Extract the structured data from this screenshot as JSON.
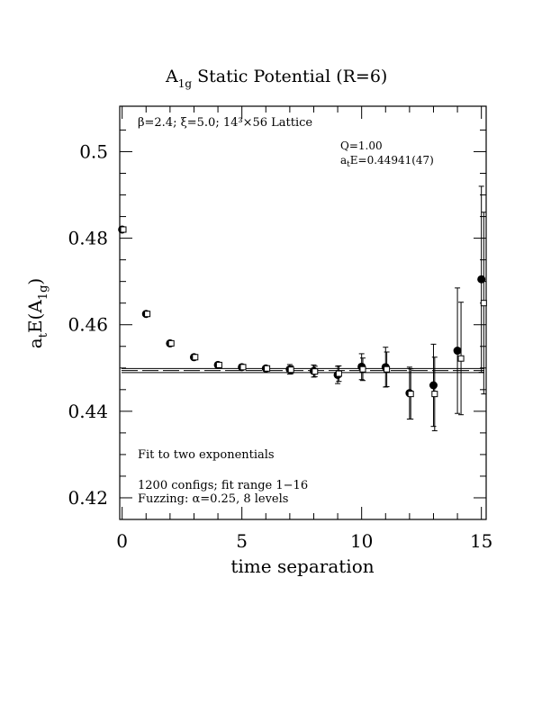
{
  "chart_data": {
    "type": "scatter",
    "title": "A",
    "title_sub": "1g",
    "title_rest": " Static Potential (R=6)",
    "xlabel": "time separation",
    "ylabel_main": "a",
    "ylabel_sub1": "t",
    "ylabel_mid": "E(A",
    "ylabel_sub2": "1g",
    "ylabel_end": ")",
    "xlim": [
      -0.1,
      15.2
    ],
    "ylim": [
      0.415,
      0.5105
    ],
    "x_ticks": [
      0,
      5,
      10,
      15
    ],
    "x_tick_labels": [
      "0",
      "5",
      "10",
      "15"
    ],
    "y_ticks": [
      0.42,
      0.44,
      0.46,
      0.48,
      0.5
    ],
    "y_tick_labels": [
      "0.42",
      "0.44",
      "0.46",
      "0.48",
      "0.5"
    ],
    "grid": false,
    "annotations": {
      "lattice": "β=2.4; ξ=5.0; 14³×56 Lattice",
      "q_label": "Q=1.00",
      "energy_main": "a",
      "energy_sub": "t",
      "energy_rest": "E=0.44941(47)",
      "fit_type": "Fit to two exponentials",
      "configs": "1200 configs; fit range 1−16",
      "fuzzing": "Fuzzing: α=0.25, 8 levels"
    },
    "fit_band": {
      "center": 0.44941,
      "error": 0.00047
    },
    "series": [
      {
        "marker": "filled-circle",
        "points": [
          {
            "x": 0,
            "y": 0.482,
            "err": 0.0004
          },
          {
            "x": 1,
            "y": 0.4625,
            "err": 0.0005
          },
          {
            "x": 2,
            "y": 0.4557,
            "err": 0.0005
          },
          {
            "x": 3,
            "y": 0.4525,
            "err": 0.0005
          },
          {
            "x": 4,
            "y": 0.4507,
            "err": 0.0006
          },
          {
            "x": 5,
            "y": 0.4502,
            "err": 0.0007
          },
          {
            "x": 6,
            "y": 0.4499,
            "err": 0.0008
          },
          {
            "x": 7,
            "y": 0.4497,
            "err": 0.0011
          },
          {
            "x": 8,
            "y": 0.4493,
            "err": 0.0014
          },
          {
            "x": 9,
            "y": 0.4484,
            "err": 0.002
          },
          {
            "x": 10,
            "y": 0.4503,
            "err": 0.003
          },
          {
            "x": 11,
            "y": 0.4502,
            "err": 0.0046
          },
          {
            "x": 12,
            "y": 0.4442,
            "err": 0.006
          },
          {
            "x": 13,
            "y": 0.446,
            "err": 0.0095
          },
          {
            "x": 14,
            "y": 0.454,
            "err": 0.0145
          },
          {
            "x": 15,
            "y": 0.4705,
            "err": 0.0215
          }
        ]
      },
      {
        "marker": "open-square",
        "points": [
          {
            "x": 0.05,
            "y": 0.482,
            "err": 0.0003
          },
          {
            "x": 1.05,
            "y": 0.4625,
            "err": 0.0004
          },
          {
            "x": 2.05,
            "y": 0.4557,
            "err": 0.0004
          },
          {
            "x": 3.05,
            "y": 0.4525,
            "err": 0.0004
          },
          {
            "x": 4.05,
            "y": 0.4507,
            "err": 0.0005
          },
          {
            "x": 5.05,
            "y": 0.4502,
            "err": 0.0006
          },
          {
            "x": 6.05,
            "y": 0.4499,
            "err": 0.0007
          },
          {
            "x": 7.05,
            "y": 0.4496,
            "err": 0.0009
          },
          {
            "x": 8.05,
            "y": 0.4492,
            "err": 0.0012
          },
          {
            "x": 9.05,
            "y": 0.4487,
            "err": 0.0018
          },
          {
            "x": 10.05,
            "y": 0.4497,
            "err": 0.0026
          },
          {
            "x": 11.05,
            "y": 0.4497,
            "err": 0.004
          },
          {
            "x": 12.05,
            "y": 0.444,
            "err": 0.0058
          },
          {
            "x": 13.05,
            "y": 0.444,
            "err": 0.0085
          },
          {
            "x": 14.15,
            "y": 0.4522,
            "err": 0.013
          },
          {
            "x": 15.1,
            "y": 0.465,
            "err": 0.021
          }
        ]
      }
    ]
  }
}
